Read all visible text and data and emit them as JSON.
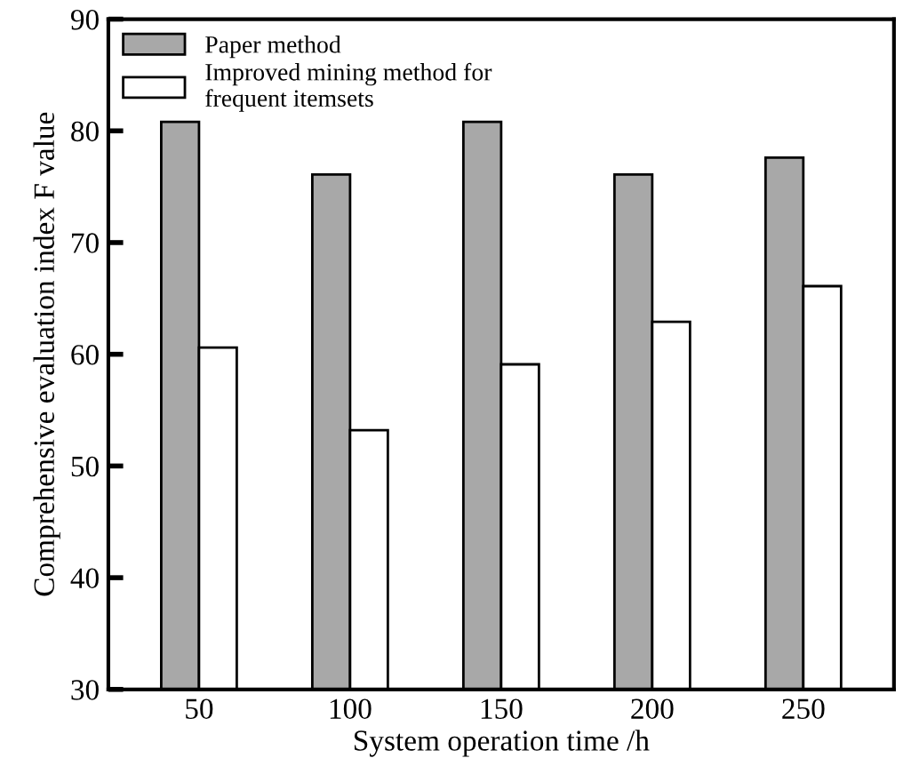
{
  "chart_data": {
    "type": "bar",
    "xlabel": "System operation time /h",
    "ylabel": "Comprehensive evaluation index F value",
    "categories": [
      "50",
      "100",
      "150",
      "200",
      "250"
    ],
    "series": [
      {
        "name": "Paper method",
        "color": "#a8a8a8",
        "values": [
          80.8,
          76.1,
          80.8,
          76.1,
          77.6
        ]
      },
      {
        "name": "Improved mining method for\nfrequent itemsets",
        "color": "#ffffff",
        "values": [
          60.6,
          53.2,
          59.1,
          62.9,
          66.1
        ]
      }
    ],
    "ylim": [
      30,
      90
    ],
    "yticks": [
      30,
      40,
      50,
      60,
      70,
      80,
      90
    ],
    "grid": false,
    "legend": "top left"
  }
}
